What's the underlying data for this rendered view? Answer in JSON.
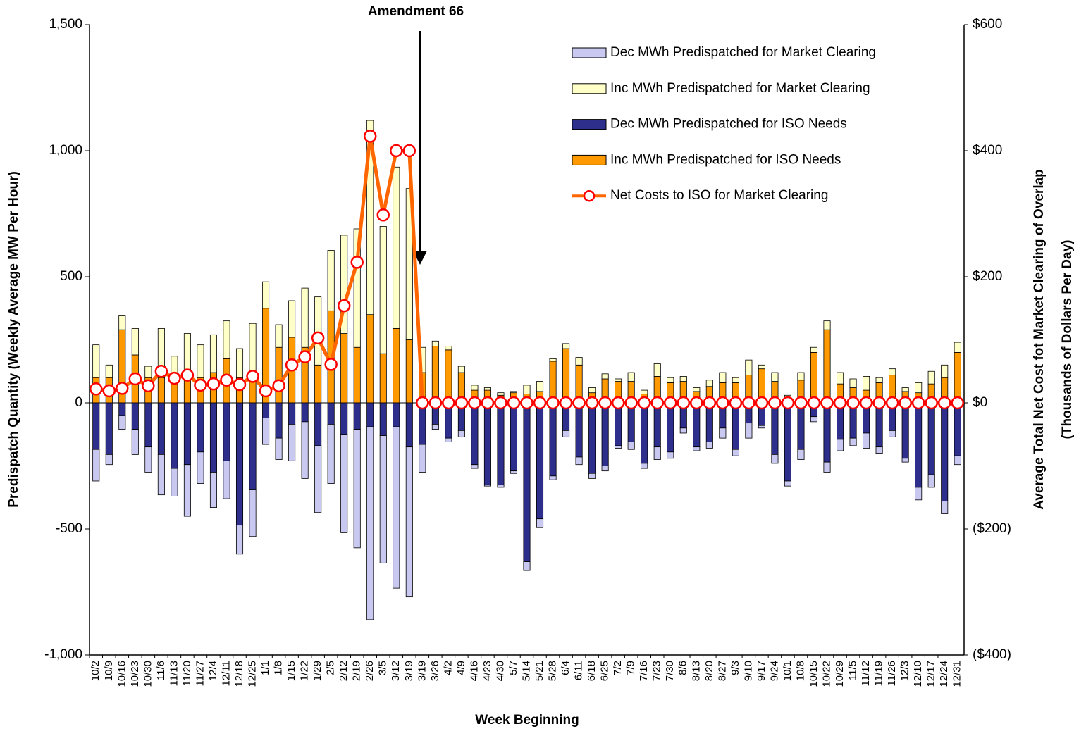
{
  "chart_data": {
    "type": "bar",
    "annotation": "Amendment 66",
    "xlabel": "Week Beginning",
    "ylabel": "Predispatch Quantity (Weekly Average MW Per Hour)",
    "y2label": [
      "Average Total Net Cost fot Market Clearing of Overlap",
      "(Thousands of Dollars Per Day)"
    ],
    "categories": [
      "10/2",
      "10/9",
      "10/16",
      "10/23",
      "10/30",
      "11/6",
      "11/13",
      "11/20",
      "11/27",
      "12/4",
      "12/11",
      "12/18",
      "12/25",
      "1/1",
      "1/8",
      "1/15",
      "1/22",
      "1/29",
      "2/5",
      "2/12",
      "2/19",
      "2/26",
      "3/5",
      "3/12",
      "3/19",
      "3/19",
      "3/26",
      "4/2",
      "4/9",
      "4/16",
      "4/23",
      "4/30",
      "5/7",
      "5/14",
      "5/21",
      "5/28",
      "6/4",
      "6/11",
      "6/18",
      "6/25",
      "7/2",
      "7/9",
      "7/16",
      "7/23",
      "7/30",
      "8/6",
      "8/13",
      "8/20",
      "8/27",
      "9/3",
      "9/10",
      "9/17",
      "9/24",
      "10/1",
      "10/8",
      "10/15",
      "10/22",
      "10/29",
      "11/5",
      "11/12",
      "11/19",
      "11/26",
      "12/3",
      "12/10",
      "12/17",
      "12/24",
      "12/31"
    ],
    "ylim": [
      -1000,
      1500
    ],
    "yticks": [
      {
        "value": -1000,
        "label": "-1,000"
      },
      -500,
      0,
      500,
      {
        "value": 1000,
        "label": "1,000"
      },
      {
        "value": 1500,
        "label": "1,500"
      }
    ],
    "y2lim": [
      -400,
      600
    ],
    "y2ticks": [
      {
        "value": -400,
        "label": "($400)"
      },
      {
        "value": -200,
        "label": "($200)"
      },
      {
        "value": 0,
        "label": "$0"
      },
      {
        "value": 200,
        "label": "$200"
      },
      {
        "value": 400,
        "label": "$400"
      },
      {
        "value": 600,
        "label": "$600"
      }
    ],
    "grid": false,
    "legend": "upper right",
    "series": [
      {
        "name": "Dec MWh Predispatched for Market Clearing",
        "color": "#c8c8f0",
        "values": [
          -125,
          -40,
          -55,
          -100,
          -100,
          -160,
          -110,
          -205,
          -125,
          -140,
          -150,
          -115,
          -185,
          -105,
          -85,
          -145,
          -225,
          -265,
          -235,
          -390,
          -470,
          -765,
          -505,
          -640,
          -595,
          -110,
          -20,
          -15,
          -25,
          -15,
          -5,
          -10,
          -10,
          -35,
          -35,
          -15,
          -25,
          -30,
          -20,
          -20,
          -10,
          -30,
          -20,
          -50,
          -25,
          -20,
          -15,
          -25,
          -40,
          -25,
          -60,
          -10,
          -35,
          -20,
          -40,
          -20,
          -40,
          -45,
          -30,
          -60,
          -25,
          -25,
          -15,
          -50,
          -50,
          -50,
          -35
        ]
      },
      {
        "name": "Inc MWh Predispatched for Market Clearing",
        "color": "#ffffc8",
        "values": [
          130,
          50,
          55,
          105,
          45,
          195,
          85,
          175,
          130,
          150,
          150,
          115,
          205,
          105,
          90,
          145,
          235,
          270,
          240,
          390,
          470,
          770,
          505,
          640,
          600,
          100,
          20,
          15,
          25,
          20,
          10,
          10,
          5,
          35,
          40,
          10,
          20,
          30,
          20,
          20,
          10,
          35,
          15,
          50,
          20,
          20,
          15,
          25,
          40,
          20,
          60,
          15,
          35,
          10,
          30,
          20,
          35,
          45,
          35,
          55,
          20,
          25,
          15,
          40,
          50,
          50,
          40
        ]
      },
      {
        "name": "Dec MWh Predispatched for ISO Needs",
        "color": "#2e2e8c",
        "values": [
          -185,
          -205,
          -50,
          -105,
          -175,
          -205,
          -260,
          -245,
          -195,
          -275,
          -230,
          -485,
          -345,
          -60,
          -140,
          -85,
          -75,
          -170,
          -85,
          -125,
          -105,
          -95,
          -130,
          -95,
          -175,
          -165,
          -85,
          -140,
          -110,
          -245,
          -325,
          -325,
          -270,
          -630,
          -460,
          -290,
          -110,
          -215,
          -280,
          -250,
          -170,
          -155,
          -240,
          -175,
          -195,
          -100,
          -175,
          -155,
          -100,
          -185,
          -80,
          -90,
          -205,
          -310,
          -185,
          -55,
          -235,
          -145,
          -140,
          -120,
          -175,
          -110,
          -220,
          -335,
          -285,
          -390,
          -210
        ]
      },
      {
        "name": "Inc MWh Predispatched for ISO Needs",
        "color": "#ff9900",
        "values": [
          100,
          100,
          290,
          190,
          100,
          100,
          100,
          100,
          100,
          120,
          175,
          100,
          110,
          375,
          220,
          260,
          220,
          150,
          365,
          275,
          220,
          350,
          195,
          295,
          250,
          120,
          225,
          210,
          120,
          50,
          50,
          30,
          40,
          35,
          45,
          165,
          215,
          150,
          40,
          95,
          85,
          85,
          35,
          105,
          80,
          85,
          45,
          65,
          80,
          80,
          110,
          135,
          85,
          20,
          90,
          200,
          290,
          75,
          60,
          50,
          80,
          110,
          45,
          40,
          75,
          100,
          200
        ]
      },
      {
        "name": "Net Costs to ISO for Market Clearing",
        "type": "line",
        "axis": "y2",
        "color": "#ff6600",
        "marker_edge": "#ff0000",
        "values": [
          22,
          19,
          23,
          38,
          27,
          50,
          39,
          44,
          28,
          30,
          36,
          29,
          42,
          19,
          27,
          60,
          73,
          103,
          61,
          154,
          223,
          423,
          298,
          400,
          400,
          0,
          0,
          0,
          0,
          0,
          0,
          0,
          0,
          0,
          0,
          0,
          0,
          0,
          0,
          0,
          0,
          0,
          0,
          0,
          0,
          0,
          0,
          0,
          0,
          0,
          0,
          0,
          0,
          0,
          0,
          0,
          0,
          0,
          0,
          0,
          0,
          0,
          0,
          0,
          0,
          0,
          0
        ]
      }
    ]
  }
}
